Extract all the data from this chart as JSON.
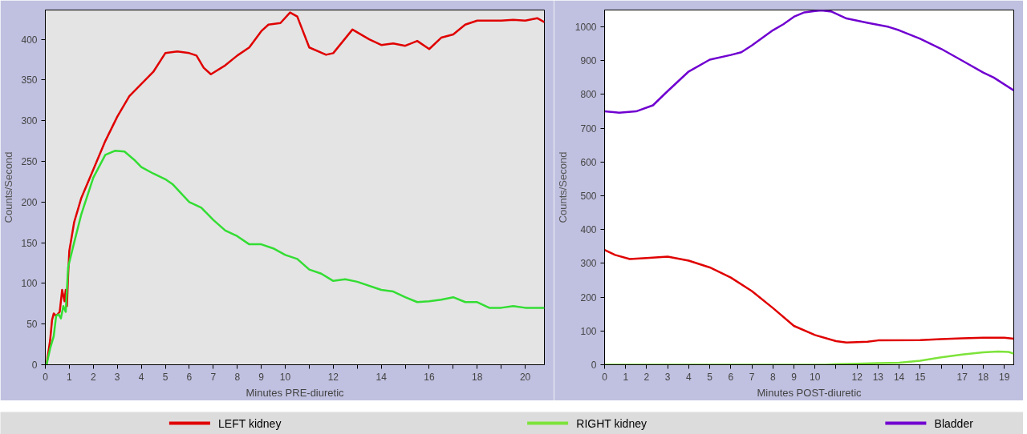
{
  "chart_data": [
    {
      "type": "line",
      "xlabel": "Minutes PRE-diuretic",
      "ylabel": "Counts/Second",
      "xlim": [
        0,
        20.8
      ],
      "ylim": [
        0,
        436
      ],
      "xticks": [
        0,
        1,
        2,
        3,
        4,
        5,
        6,
        7,
        8,
        9,
        10,
        {
          "value": 11,
          "label": null
        },
        12,
        {
          "value": 13,
          "label": null
        },
        14,
        {
          "value": 15,
          "label": null
        },
        16,
        {
          "value": 17,
          "label": null
        },
        18,
        {
          "value": 19,
          "label": null
        },
        20
      ],
      "yticks": [
        0,
        50,
        100,
        150,
        200,
        250,
        300,
        350,
        400
      ],
      "grid": false,
      "marker": "none",
      "line_style": "solid",
      "series": [
        {
          "color": "#e00000",
          "x": [
            0.05,
            0.2,
            0.28,
            0.35,
            0.45,
            0.6,
            0.7,
            0.8,
            0.85,
            0.9,
            0.95,
            1.0,
            1.2,
            1.5,
            2,
            2.5,
            3,
            3.5,
            4,
            4.5,
            5,
            5.5,
            6,
            6.3,
            6.6,
            6.9,
            7.5,
            8,
            8.5,
            9,
            9.3,
            9.8,
            10.2,
            10.5,
            11,
            11.7,
            12,
            12.8,
            13.5,
            14,
            14.5,
            15,
            15.5,
            16,
            16.5,
            17,
            17.5,
            18,
            19,
            19.5,
            20,
            20.5,
            20.8
          ],
          "values": [
            0,
            30,
            55,
            63,
            60,
            65,
            92,
            78,
            92,
            72,
            110,
            140,
            175,
            205,
            240,
            275,
            305,
            330,
            345,
            360,
            383,
            385,
            383,
            380,
            365,
            357,
            368,
            380,
            390,
            410,
            418,
            420,
            433,
            428,
            390,
            381,
            383,
            412,
            400,
            393,
            395,
            392,
            398,
            388,
            402,
            406,
            418,
            423,
            423,
            424,
            423,
            426,
            421
          ]
        },
        {
          "color": "#33dd33",
          "x": [
            0.05,
            0.2,
            0.35,
            0.45,
            0.55,
            0.65,
            0.75,
            0.85,
            0.95,
            1.2,
            1.5,
            2,
            2.5,
            2.9,
            3.3,
            3.7,
            4,
            4.5,
            5,
            5.3,
            6,
            6.5,
            7,
            7.5,
            8,
            8.5,
            9,
            9.5,
            10,
            10.5,
            11,
            11.5,
            12,
            12.5,
            13,
            14,
            14.5,
            15,
            15.5,
            16,
            16.5,
            17,
            17.5,
            18,
            18.5,
            19,
            19.5,
            20,
            20.8
          ],
          "values": [
            0,
            20,
            35,
            60,
            62,
            57,
            72,
            65,
            120,
            150,
            185,
            230,
            258,
            263,
            262,
            252,
            243,
            235,
            228,
            222,
            200,
            193,
            178,
            165,
            158,
            148,
            148,
            143,
            135,
            130,
            117,
            112,
            103,
            105,
            102,
            92,
            90,
            83,
            77,
            78,
            80,
            83,
            77,
            77,
            70,
            70,
            72,
            70,
            70
          ]
        }
      ]
    },
    {
      "type": "line",
      "xlabel": "Minutes POST-diuretic",
      "ylabel": "Counts/Second",
      "xlim": [
        0,
        19.45
      ],
      "ylim": [
        0,
        1050
      ],
      "xticks": [
        0,
        1,
        2,
        3,
        4,
        5,
        6,
        7,
        8,
        9,
        10,
        {
          "value": 11,
          "label": null
        },
        12,
        13,
        14,
        15,
        {
          "value": 16,
          "label": null
        },
        17,
        18,
        19
      ],
      "yticks": [
        0,
        100,
        200,
        300,
        400,
        500,
        600,
        700,
        800,
        900,
        1000
      ],
      "grid": false,
      "legend": "bottom",
      "marker": "none",
      "line_style": "solid",
      "series": [
        {
          "name": "LEFT kidney",
          "color": "#e00000",
          "x": [
            0,
            0.5,
            1.2,
            2,
            3,
            4,
            5,
            6,
            7,
            8,
            9,
            10,
            11,
            11.5,
            12.5,
            13,
            15,
            16,
            17,
            18,
            19,
            19.45
          ],
          "values": [
            340,
            325,
            313,
            316,
            320,
            308,
            288,
            258,
            218,
            168,
            115,
            88,
            70,
            66,
            68,
            72,
            73,
            76,
            78,
            80,
            80,
            77
          ]
        },
        {
          "name": "RIGHT kidney",
          "color": "#7de33a",
          "x": [
            0,
            2,
            4,
            6,
            8,
            10,
            10.5,
            11,
            12,
            13,
            14,
            15,
            16,
            17,
            18,
            18.7,
            19.2,
            19.45
          ],
          "values": [
            0,
            0,
            0,
            0,
            0,
            0,
            0,
            2,
            3,
            5,
            6,
            12,
            22,
            30,
            37,
            39,
            38,
            33
          ]
        },
        {
          "name": "Bladder",
          "color": "#7000d0",
          "x": [
            0,
            0.7,
            1.5,
            2.3,
            3,
            4,
            5,
            6,
            6.5,
            7,
            8,
            8.5,
            9,
            9.5,
            10.3,
            10.8,
            11.5,
            12.5,
            13.5,
            14,
            15,
            16,
            17,
            18,
            18.5,
            19.45
          ],
          "values": [
            750,
            746,
            750,
            768,
            810,
            868,
            903,
            917,
            925,
            945,
            990,
            1008,
            1030,
            1043,
            1049,
            1045,
            1025,
            1012,
            1000,
            990,
            965,
            935,
            900,
            865,
            850,
            812
          ]
        }
      ]
    }
  ]
}
